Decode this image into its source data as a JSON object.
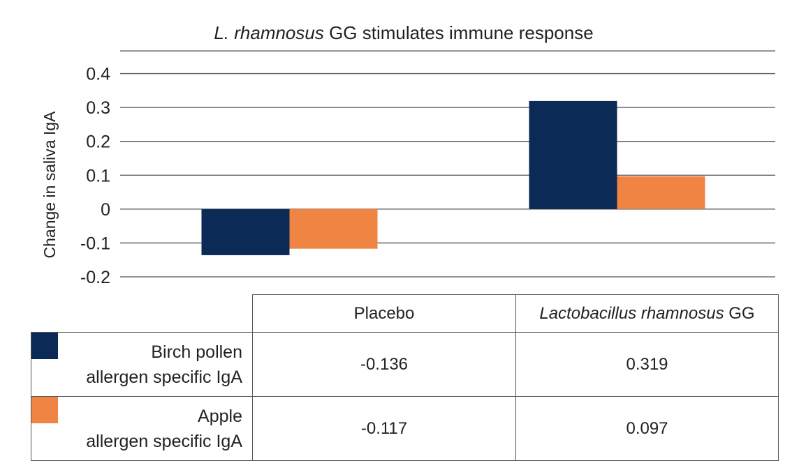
{
  "chart_data": {
    "type": "bar",
    "title_italic": "L. rhamnosus",
    "title_rest": " GG stimulates immune response",
    "ylabel": "Change in saliva IgA",
    "xlabel": "",
    "ylim": [
      -0.2,
      0.4
    ],
    "yticks": [
      "0.4",
      "0.3",
      "0.2",
      "0.1",
      "0",
      "-0.1",
      "-0.2"
    ],
    "ytick_values": [
      0.4,
      0.3,
      0.2,
      0.1,
      0,
      -0.1,
      -0.2
    ],
    "grid": true,
    "legend_position": "bottom (data table)",
    "categories": [
      "Placebo",
      "Lactobacillus rhamnosus GG"
    ],
    "series": [
      {
        "name_line1": "Birch pollen",
        "name_line2": "allergen specific IgA",
        "color": "#0b2a55",
        "values": [
          -0.136,
          0.319
        ]
      },
      {
        "name_line1": "Apple",
        "name_line2": "allergen specific IgA",
        "color": "#ef8443",
        "values": [
          -0.117,
          0.097
        ]
      }
    ]
  },
  "table": {
    "header_placebo": "Placebo",
    "header_lgg_italic": "Lactobacillus rhamnosus",
    "header_lgg_rest": " GG",
    "rows": [
      {
        "label_line1": "Birch pollen",
        "label_line2": "allergen specific IgA",
        "placebo": "-0.136",
        "lgg": "0.319"
      },
      {
        "label_line1": "Apple",
        "label_line2": "allergen specific IgA",
        "placebo": "-0.117",
        "lgg": "0.097"
      }
    ]
  }
}
